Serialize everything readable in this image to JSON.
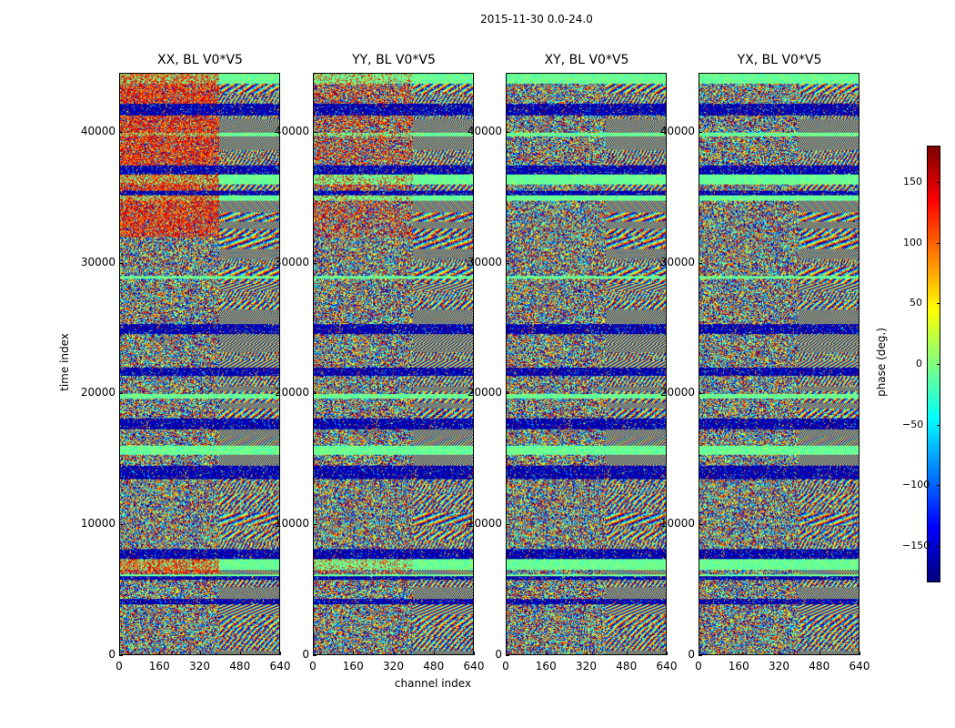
{
  "suptitle": "2015-11-30 0.0-24.0",
  "chart_data": {
    "type": "heatmap",
    "xlabel": "channel index",
    "ylabel": "time index",
    "xlim": [
      0,
      640
    ],
    "ylim": [
      0,
      44500
    ],
    "xticks": [
      "0",
      "160",
      "320",
      "480",
      "640"
    ],
    "yticks": [
      "0",
      "10000",
      "20000",
      "30000",
      "40000"
    ],
    "panels": [
      {
        "title": "XX, BL V0*V5"
      },
      {
        "title": "YY, BL V0*V5"
      },
      {
        "title": "XY, BL V0*V5"
      },
      {
        "title": "YX, BL V0*V5"
      }
    ],
    "colorbar": {
      "label": "phase (deg.)",
      "range": [
        -180,
        180
      ],
      "ticks": [
        "150",
        "100",
        "50",
        "0",
        "−50",
        "−100",
        "−150"
      ],
      "colormap": "jet"
    }
  }
}
